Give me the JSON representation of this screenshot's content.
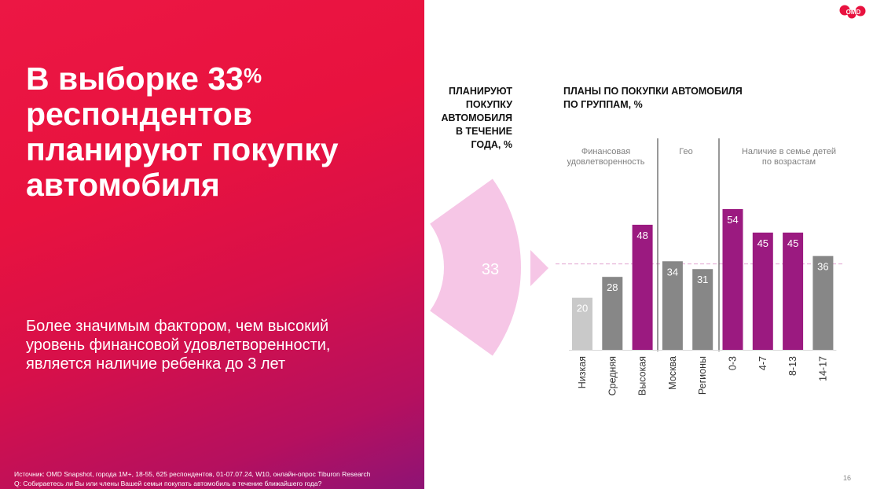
{
  "headline": {
    "line1": "В выборке 33",
    "sup": "%",
    "line2": "респондентов",
    "line3": "планируют покупку",
    "line4": "автомобиля"
  },
  "subtext": {
    "line1": "Более значимым фактором, чем высокий",
    "line2": "уровень финансовой удовлетворенности,",
    "line3": "является наличие ребенка до 3 лет"
  },
  "footnote": {
    "source": "Источник: OMD Snapshot, города 1М+, 18-55, 625 респондентов, 01-07.07.24, W10, онлайн-опрос Tiburon Research",
    "question": "Q:  Собираетесь ли Вы или члены Вашей семьи покупать автомобиль в течение ближайшего года?"
  },
  "logo": {
    "text": "OMD"
  },
  "page_number": "16",
  "plan_title": [
    "ПЛАНИРУЮТ",
    "ПОКУПКУ",
    "АВТОМОБИЛЯ",
    "В ТЕЧЕНИЕ",
    "ГОДА, %"
  ],
  "groups_title": [
    "ПЛАНЫ ПО ПОКУПКИ АВТОМОБИЛЯ",
    "ПО ГРУППАМ, %"
  ],
  "colors": {
    "light_gray": "#c9c9c9",
    "mid_gray": "#878787",
    "purple": "#9b1a80",
    "arc_pink": "#f6c6e6",
    "reference_line": "#e8b9dc",
    "divider": "#555555",
    "group_label": "#7f7f7f"
  },
  "chart_data": [
    {
      "type": "pie",
      "value": 33,
      "label": "33"
    },
    {
      "type": "bar",
      "categories": [
        "Низкая",
        "Средняя",
        "Высокая",
        "Москва",
        "Регионы",
        "0-3",
        "4-7",
        "8-13",
        "14-17"
      ],
      "values": [
        20,
        28,
        48,
        34,
        31,
        54,
        45,
        45,
        36
      ],
      "bar_colors": [
        "light_gray",
        "mid_gray",
        "purple",
        "mid_gray",
        "mid_gray",
        "purple",
        "purple",
        "purple",
        "mid_gray"
      ],
      "groups": [
        {
          "label": [
            "Финансовая",
            "удовлетворенность"
          ],
          "start": 0,
          "end": 2
        },
        {
          "label": [
            "Гео"
          ],
          "start": 3,
          "end": 4
        },
        {
          "label": [
            "Наличие в семье детей",
            "по возрастам"
          ],
          "start": 5,
          "end": 8
        }
      ],
      "reference_value": 33,
      "ylim": [
        0,
        60
      ]
    }
  ]
}
